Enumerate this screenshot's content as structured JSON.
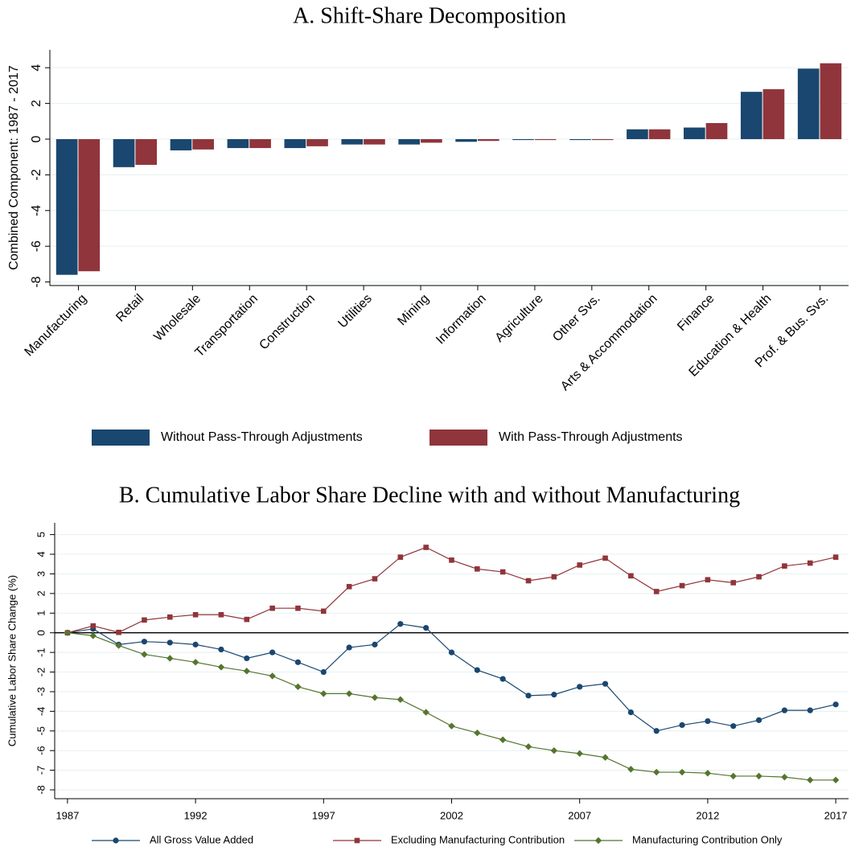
{
  "chart_data": [
    {
      "type": "bar",
      "title": "A. Shift-Share Decomposition",
      "y_label": "Combined Component: 1987 - 2017",
      "categories": [
        "Manufacturing",
        "Retail",
        "Wholesale",
        "Transportation",
        "Construction",
        "Utilities",
        "Mining",
        "Information",
        "Agriculture",
        "Other Svs.",
        "Arts & Accommodation",
        "Finance",
        "Education & Health",
        "Prof. & Bus. Svs."
      ],
      "series": [
        {
          "name": "Without Pass-Through Adjustments",
          "color": "#1a476f",
          "values": [
            -7.6,
            -1.57,
            -0.63,
            -0.5,
            -0.5,
            -0.3,
            -0.3,
            -0.15,
            -0.05,
            -0.05,
            0.55,
            0.65,
            2.65,
            3.95
          ]
        },
        {
          "name": "With Pass-Through Adjustments",
          "color": "#90353b",
          "values": [
            -7.4,
            -1.44,
            -0.58,
            -0.5,
            -0.4,
            -0.3,
            -0.2,
            -0.1,
            -0.05,
            -0.05,
            0.55,
            0.9,
            2.8,
            4.25
          ]
        }
      ],
      "ylim": [
        -8.2,
        5.0
      ],
      "yticks": [
        -8,
        -6,
        -4,
        -2,
        0,
        2,
        4
      ],
      "grid": true,
      "legend": "bottom"
    },
    {
      "type": "line",
      "title": "B. Cumulative Labor Share Decline with and without Manufacturing",
      "y_label": "Cumulative Labor Share Change (%)",
      "x": [
        1987,
        1988,
        1989,
        1990,
        1991,
        1992,
        1993,
        1994,
        1995,
        1996,
        1997,
        1998,
        1999,
        2000,
        2001,
        2002,
        2003,
        2004,
        2005,
        2006,
        2007,
        2008,
        2009,
        2010,
        2011,
        2012,
        2013,
        2014,
        2015,
        2016,
        2017
      ],
      "series": [
        {
          "name": "All Gross Value Added",
          "color": "#1a476f",
          "marker": "circle",
          "values": [
            0,
            0.2,
            -0.6,
            -0.45,
            -0.5,
            -0.6,
            -0.85,
            -1.3,
            -1.0,
            -1.5,
            -2.0,
            -0.75,
            -0.6,
            0.45,
            0.25,
            -1.0,
            -1.9,
            -2.35,
            -3.2,
            -3.15,
            -2.75,
            -2.6,
            -4.05,
            -5.0,
            -4.7,
            -4.5,
            -4.75,
            -4.45,
            -3.95,
            -3.95,
            -3.65
          ]
        },
        {
          "name": "Excluding Manufacturing Contribution",
          "color": "#90353b",
          "marker": "square",
          "values": [
            0,
            0.35,
            0.02,
            0.65,
            0.8,
            0.92,
            0.92,
            0.68,
            1.25,
            1.25,
            1.1,
            2.35,
            2.75,
            3.85,
            4.35,
            3.7,
            3.25,
            3.1,
            2.65,
            2.85,
            3.45,
            3.8,
            2.9,
            2.1,
            2.4,
            2.7,
            2.55,
            2.85,
            3.4,
            3.55,
            3.85
          ]
        },
        {
          "name": "Manufacturing Contribution Only",
          "color": "#55752f",
          "marker": "diamond",
          "values": [
            0,
            -0.15,
            -0.65,
            -1.1,
            -1.3,
            -1.5,
            -1.75,
            -1.95,
            -2.2,
            -2.75,
            -3.1,
            -3.1,
            -3.3,
            -3.4,
            -4.05,
            -4.75,
            -5.1,
            -5.45,
            -5.8,
            -6.0,
            -6.15,
            -6.35,
            -6.95,
            -7.1,
            -7.1,
            -7.15,
            -7.3,
            -7.3,
            -7.35,
            -7.5,
            -7.5
          ]
        }
      ],
      "xlim": [
        1986.5,
        2017.5
      ],
      "xticks": [
        1987,
        1992,
        1997,
        2002,
        2007,
        2012,
        2017
      ],
      "ylim": [
        -8.45,
        5.6
      ],
      "yticks": [
        -8,
        -7,
        -6,
        -5,
        -4,
        -3,
        -2,
        -1,
        0,
        1,
        2,
        3,
        4,
        5
      ],
      "grid": true,
      "zero_line": true,
      "legend": "bottom"
    }
  ]
}
